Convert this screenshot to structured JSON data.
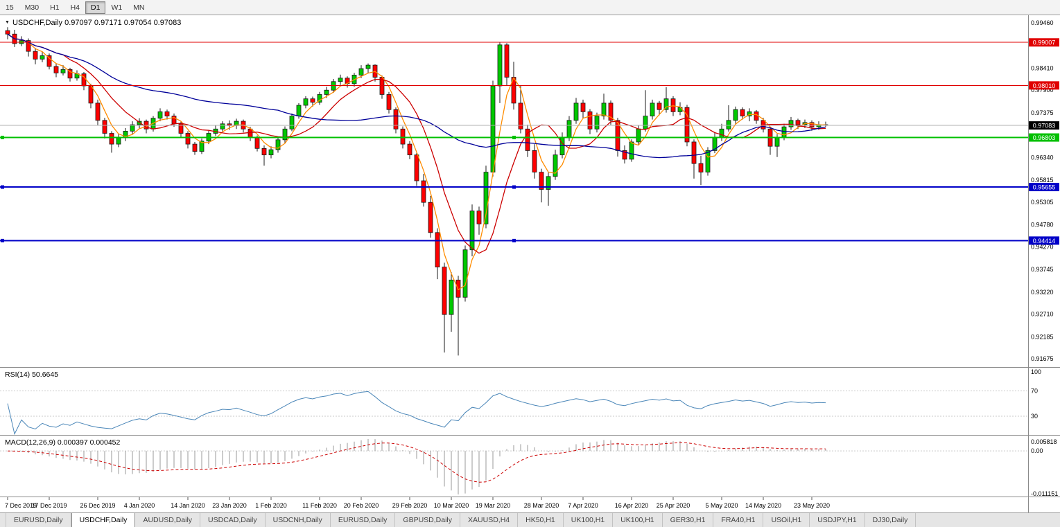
{
  "toolbar": {
    "timeframes": [
      {
        "label": "15",
        "active": false
      },
      {
        "label": "M30",
        "active": false
      },
      {
        "label": "H1",
        "active": false
      },
      {
        "label": "H4",
        "active": false
      },
      {
        "label": "D1",
        "active": true
      },
      {
        "label": "W1",
        "active": false
      },
      {
        "label": "MN",
        "active": false
      }
    ]
  },
  "chart": {
    "title": "USDCHF,Daily 0.97097 0.97171 0.97054 0.97083",
    "symbol": "USDCHF,Daily",
    "ohlc": {
      "open": "0.97097",
      "high": "0.97171",
      "low": "0.97054",
      "close": "0.97083"
    }
  },
  "rsi": {
    "label": "RSI(14) 50.6645",
    "value": "50.6645",
    "axis_labels": [
      "100",
      "70",
      "30"
    ]
  },
  "macd": {
    "label": "MACD(12,26,9) 0.000397 0.000452",
    "macd_value": "0.000397",
    "signal_value": "0.000452",
    "axis_top": "0.005818",
    "axis_zero": "0.00",
    "axis_bottom": "-0.011151"
  },
  "tabs": [
    {
      "label": "EURUSD,Daily",
      "active": false
    },
    {
      "label": "USDCHF,Daily",
      "active": true
    },
    {
      "label": "AUDUSD,Daily",
      "active": false
    },
    {
      "label": "USDCAD,Daily",
      "active": false
    },
    {
      "label": "USDCNH,Daily",
      "active": false
    },
    {
      "label": "EURUSD,Daily",
      "active": false
    },
    {
      "label": "GBPUSD,Daily",
      "active": false
    },
    {
      "label": "XAUUSD,H4",
      "active": false
    },
    {
      "label": "HK50,H1",
      "active": false
    },
    {
      "label": "UK100,H1",
      "active": false
    },
    {
      "label": "UK100,H1",
      "active": false
    },
    {
      "label": "GER30,H1",
      "active": false
    },
    {
      "label": "FRA40,H1",
      "active": false
    },
    {
      "label": "USOil,H1",
      "active": false
    },
    {
      "label": "USDJPY,H1",
      "active": false
    },
    {
      "label": "DJ30,Daily",
      "active": false
    }
  ],
  "chart_data": {
    "type": "candlestick",
    "symbol": "USDCHF",
    "timeframe": "Daily",
    "ylim": [
      0.9149,
      0.9964
    ],
    "price_axis_labels": [
      "0.99460",
      "0.98410",
      "0.97900",
      "0.97375",
      "0.96340",
      "0.95815",
      "0.95305",
      "0.94780",
      "0.94270",
      "0.93745",
      "0.93220",
      "0.92710",
      "0.92185",
      "0.91675"
    ],
    "hlines": [
      {
        "price": 0.99007,
        "color": "#e00000",
        "tag": "0.99007",
        "tag_bg": "#e00000",
        "width": 1,
        "handles": false
      },
      {
        "price": 0.9801,
        "color": "#e00000",
        "tag": "0.98010",
        "tag_bg": "#e00000",
        "width": 1,
        "handles": false
      },
      {
        "price": 0.97083,
        "color": "#b0b0b0",
        "tag": "0.97083",
        "tag_bg": "#000000",
        "width": 1,
        "handles": false
      },
      {
        "price": 0.96803,
        "color": "#00c000",
        "tag": "0.96803",
        "tag_bg": "#00c000",
        "width": 2,
        "handles": true
      },
      {
        "price": 0.95655,
        "color": "#0000c8",
        "tag": "0.95655",
        "tag_bg": "#0000c8",
        "width": 2,
        "handles": true
      },
      {
        "price": 0.94414,
        "color": "#0000c8",
        "tag": "0.94414",
        "tag_bg": "#0000c8",
        "width": 2,
        "handles": true
      }
    ],
    "x_ticks": [
      {
        "i": 0,
        "label": "7 Dec 2019"
      },
      {
        "i": 6,
        "label": "17 Dec 2019"
      },
      {
        "i": 13,
        "label": "26 Dec 2019"
      },
      {
        "i": 19,
        "label": "4 Jan 2020"
      },
      {
        "i": 26,
        "label": "14 Jan 2020"
      },
      {
        "i": 32,
        "label": "23 Jan 2020"
      },
      {
        "i": 38,
        "label": "1 Feb 2020"
      },
      {
        "i": 45,
        "label": "11 Feb 2020"
      },
      {
        "i": 51,
        "label": "20 Feb 2020"
      },
      {
        "i": 58,
        "label": "29 Feb 2020"
      },
      {
        "i": 64,
        "label": "10 Mar 2020"
      },
      {
        "i": 70,
        "label": "19 Mar 2020"
      },
      {
        "i": 77,
        "label": "28 Mar 2020"
      },
      {
        "i": 83,
        "label": "7 Apr 2020"
      },
      {
        "i": 90,
        "label": "16 Apr 2020"
      },
      {
        "i": 96,
        "label": "25 Apr 2020"
      },
      {
        "i": 103,
        "label": "5 May 2020"
      },
      {
        "i": 109,
        "label": "14 May 2020"
      },
      {
        "i": 116,
        "label": "23 May 2020"
      }
    ],
    "moving_averages": [
      {
        "period": 4,
        "color": "#ff8c00"
      },
      {
        "period": 9,
        "color": "#cc0000"
      },
      {
        "period": 40,
        "color": "#000099"
      }
    ],
    "rsi_period": 14,
    "macd_params": {
      "fast": 12,
      "slow": 26,
      "signal": 9
    },
    "colors": {
      "up": "#00c800",
      "down": "#ff0000",
      "outline": "#1a1a1a",
      "rsi_line": "#4a86b8",
      "macd_hist": "#9a9a9a",
      "macd_signal": "#cc0000",
      "level_dotted": "#c8c8c8"
    },
    "candles": [
      [
        0.9928,
        0.9936,
        0.9908,
        0.992
      ],
      [
        0.992,
        0.993,
        0.989,
        0.9898
      ],
      [
        0.9898,
        0.9915,
        0.9892,
        0.9905
      ],
      [
        0.9905,
        0.991,
        0.9868,
        0.988
      ],
      [
        0.988,
        0.9888,
        0.985,
        0.9862
      ],
      [
        0.9862,
        0.988,
        0.9855,
        0.987
      ],
      [
        0.987,
        0.9875,
        0.9838,
        0.9845
      ],
      [
        0.9845,
        0.9852,
        0.982,
        0.983
      ],
      [
        0.983,
        0.9848,
        0.9824,
        0.9838
      ],
      [
        0.9838,
        0.9842,
        0.981,
        0.9818
      ],
      [
        0.9818,
        0.9836,
        0.9812,
        0.9828
      ],
      [
        0.9828,
        0.9832,
        0.979,
        0.98
      ],
      [
        0.98,
        0.9805,
        0.9748,
        0.976
      ],
      [
        0.976,
        0.9768,
        0.9708,
        0.972
      ],
      [
        0.972,
        0.9726,
        0.9678,
        0.969
      ],
      [
        0.969,
        0.9695,
        0.9645,
        0.9665
      ],
      [
        0.9665,
        0.9688,
        0.9658,
        0.968
      ],
      [
        0.968,
        0.9702,
        0.9672,
        0.9695
      ],
      [
        0.9695,
        0.9718,
        0.9688,
        0.971
      ],
      [
        0.971,
        0.9725,
        0.97,
        0.9718
      ],
      [
        0.9718,
        0.9722,
        0.969,
        0.97
      ],
      [
        0.97,
        0.973,
        0.9694,
        0.9725
      ],
      [
        0.9725,
        0.9748,
        0.9718,
        0.974
      ],
      [
        0.974,
        0.9745,
        0.9722,
        0.973
      ],
      [
        0.973,
        0.9736,
        0.9705,
        0.9712
      ],
      [
        0.9712,
        0.9718,
        0.9682,
        0.969
      ],
      [
        0.969,
        0.9695,
        0.9655,
        0.9665
      ],
      [
        0.9665,
        0.967,
        0.964,
        0.9648
      ],
      [
        0.9648,
        0.9678,
        0.9642,
        0.9672
      ],
      [
        0.9672,
        0.9696,
        0.9665,
        0.969
      ],
      [
        0.969,
        0.9708,
        0.9684,
        0.97
      ],
      [
        0.97,
        0.9718,
        0.9694,
        0.9712
      ],
      [
        0.9712,
        0.972,
        0.9698,
        0.9708
      ],
      [
        0.9708,
        0.9724,
        0.97,
        0.9718
      ],
      [
        0.9718,
        0.9722,
        0.9692,
        0.97
      ],
      [
        0.97,
        0.9705,
        0.9672,
        0.968
      ],
      [
        0.968,
        0.9685,
        0.9648,
        0.9655
      ],
      [
        0.9655,
        0.9662,
        0.9615,
        0.964
      ],
      [
        0.964,
        0.966,
        0.9632,
        0.9652
      ],
      [
        0.9652,
        0.9682,
        0.9645,
        0.9675
      ],
      [
        0.9675,
        0.9706,
        0.9668,
        0.97
      ],
      [
        0.97,
        0.9736,
        0.9695,
        0.973
      ],
      [
        0.973,
        0.976,
        0.9724,
        0.9755
      ],
      [
        0.9755,
        0.9776,
        0.9748,
        0.977
      ],
      [
        0.977,
        0.9775,
        0.9752,
        0.9762
      ],
      [
        0.9762,
        0.9786,
        0.9756,
        0.978
      ],
      [
        0.978,
        0.9798,
        0.9772,
        0.979
      ],
      [
        0.979,
        0.9816,
        0.9784,
        0.981
      ],
      [
        0.981,
        0.9826,
        0.9802,
        0.9818
      ],
      [
        0.9818,
        0.9822,
        0.9796,
        0.9805
      ],
      [
        0.9805,
        0.983,
        0.9798,
        0.9825
      ],
      [
        0.9825,
        0.9848,
        0.9818,
        0.984
      ],
      [
        0.984,
        0.9852,
        0.983,
        0.9848
      ],
      [
        0.9848,
        0.985,
        0.981,
        0.982
      ],
      [
        0.982,
        0.9824,
        0.977,
        0.978
      ],
      [
        0.978,
        0.9786,
        0.9736,
        0.9745
      ],
      [
        0.9745,
        0.975,
        0.969,
        0.97
      ],
      [
        0.97,
        0.9706,
        0.9655,
        0.9665
      ],
      [
        0.9665,
        0.9672,
        0.963,
        0.964
      ],
      [
        0.964,
        0.9645,
        0.9568,
        0.958
      ],
      [
        0.958,
        0.9596,
        0.952,
        0.953
      ],
      [
        0.953,
        0.9545,
        0.9448,
        0.946
      ],
      [
        0.946,
        0.947,
        0.9352,
        0.938
      ],
      [
        0.938,
        0.939,
        0.9182,
        0.927
      ],
      [
        0.927,
        0.9368,
        0.923,
        0.935
      ],
      [
        0.935,
        0.936,
        0.9175,
        0.931
      ],
      [
        0.931,
        0.943,
        0.93,
        0.942
      ],
      [
        0.942,
        0.9525,
        0.9405,
        0.951
      ],
      [
        0.951,
        0.952,
        0.9455,
        0.948
      ],
      [
        0.948,
        0.9615,
        0.947,
        0.96
      ],
      [
        0.96,
        0.9812,
        0.959,
        0.98
      ],
      [
        0.98,
        0.9901,
        0.976,
        0.9895
      ],
      [
        0.9895,
        0.9899,
        0.98,
        0.982
      ],
      [
        0.982,
        0.9856,
        0.9745,
        0.976
      ],
      [
        0.976,
        0.98,
        0.969,
        0.97
      ],
      [
        0.97,
        0.971,
        0.9635,
        0.965
      ],
      [
        0.965,
        0.9665,
        0.9585,
        0.96
      ],
      [
        0.96,
        0.9608,
        0.953,
        0.956
      ],
      [
        0.956,
        0.96,
        0.9522,
        0.959
      ],
      [
        0.959,
        0.9652,
        0.9582,
        0.964
      ],
      [
        0.964,
        0.9692,
        0.9632,
        0.968
      ],
      [
        0.968,
        0.973,
        0.9672,
        0.972
      ],
      [
        0.972,
        0.9772,
        0.9712,
        0.976
      ],
      [
        0.976,
        0.9768,
        0.9726,
        0.974
      ],
      [
        0.974,
        0.9746,
        0.9688,
        0.97
      ],
      [
        0.97,
        0.9738,
        0.9692,
        0.973
      ],
      [
        0.973,
        0.9782,
        0.9722,
        0.976
      ],
      [
        0.976,
        0.9766,
        0.971,
        0.972
      ],
      [
        0.972,
        0.9726,
        0.9636,
        0.965
      ],
      [
        0.965,
        0.9662,
        0.962,
        0.963
      ],
      [
        0.963,
        0.9676,
        0.9624,
        0.967
      ],
      [
        0.967,
        0.9708,
        0.9662,
        0.97
      ],
      [
        0.97,
        0.979,
        0.9694,
        0.973
      ],
      [
        0.973,
        0.9768,
        0.9722,
        0.976
      ],
      [
        0.976,
        0.9765,
        0.9732,
        0.9745
      ],
      [
        0.9745,
        0.9797,
        0.9738,
        0.977
      ],
      [
        0.977,
        0.9776,
        0.973,
        0.974
      ],
      [
        0.974,
        0.9762,
        0.9732,
        0.975
      ],
      [
        0.975,
        0.9756,
        0.966,
        0.967
      ],
      [
        0.967,
        0.9676,
        0.9585,
        0.962
      ],
      [
        0.962,
        0.9638,
        0.957,
        0.96
      ],
      [
        0.96,
        0.9658,
        0.9592,
        0.965
      ],
      [
        0.965,
        0.9692,
        0.9644,
        0.968
      ],
      [
        0.968,
        0.9712,
        0.9672,
        0.97
      ],
      [
        0.97,
        0.9755,
        0.9694,
        0.972
      ],
      [
        0.972,
        0.9752,
        0.9712,
        0.9745
      ],
      [
        0.9745,
        0.975,
        0.9722,
        0.973
      ],
      [
        0.973,
        0.9748,
        0.9718,
        0.974
      ],
      [
        0.974,
        0.9744,
        0.9712,
        0.972
      ],
      [
        0.972,
        0.9726,
        0.9692,
        0.97
      ],
      [
        0.97,
        0.9704,
        0.964,
        0.966
      ],
      [
        0.966,
        0.9688,
        0.9635,
        0.968
      ],
      [
        0.968,
        0.9712,
        0.9674,
        0.9705
      ],
      [
        0.9705,
        0.9728,
        0.9698,
        0.972
      ],
      [
        0.972,
        0.9724,
        0.97,
        0.971
      ],
      [
        0.971,
        0.9722,
        0.9702,
        0.9715
      ],
      [
        0.9715,
        0.972,
        0.9696,
        0.9705
      ],
      [
        0.9705,
        0.9718,
        0.9698,
        0.971
      ],
      [
        0.971,
        0.97171,
        0.97054,
        0.97083
      ]
    ]
  }
}
